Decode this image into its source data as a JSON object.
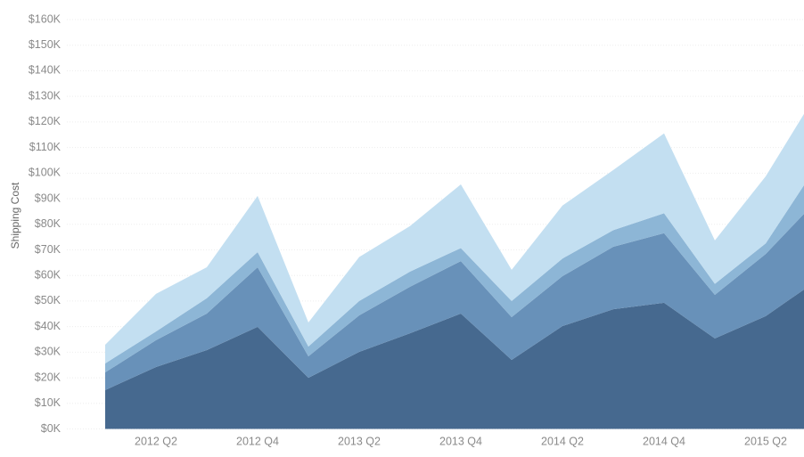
{
  "chart_data": {
    "type": "stacked_area",
    "y_label": "Shipping Cost",
    "categories": [
      null,
      "2012 Q2",
      null,
      "2012 Q4",
      null,
      "2013 Q2",
      null,
      "2013 Q4",
      null,
      "2014 Q2",
      null,
      "2014 Q4",
      null,
      "2015 Q2",
      null
    ],
    "series": [
      {
        "color": "#46698f",
        "values": [
          15.2,
          24.2,
          30.8,
          39.9,
          20,
          30.1,
          37.4,
          45.1,
          27,
          40.2,
          46.8,
          49.3,
          35.4,
          44.1,
          57.9
        ]
      },
      {
        "color": "#6891b9",
        "values": [
          6.9,
          10.5,
          14.3,
          23.3,
          8.4,
          14.3,
          18.2,
          20.5,
          16.7,
          19.5,
          24.4,
          27.2,
          17,
          24.3,
          31.3
        ]
      },
      {
        "color": "#8db6d6",
        "values": [
          3.5,
          3.4,
          6,
          5.9,
          3.8,
          5.6,
          5.9,
          5.1,
          6.3,
          6.9,
          6.5,
          7.8,
          4.3,
          4.1,
          13.5
        ]
      },
      {
        "color": "#c3dff1",
        "values": [
          7.3,
          14.7,
          12.1,
          22,
          9.4,
          17.2,
          17.8,
          24.9,
          12.2,
          20.7,
          23.5,
          31.2,
          17,
          26.2,
          28.4
        ]
      }
    ],
    "ylim": [
      0,
      160
    ],
    "yticks": [
      {
        "value": 0,
        "label": "$0K"
      },
      {
        "value": 10,
        "label": "$10K"
      },
      {
        "value": 20,
        "label": "$20K"
      },
      {
        "value": 30,
        "label": "$30K"
      },
      {
        "value": 40,
        "label": "$40K"
      },
      {
        "value": 50,
        "label": "$50K"
      },
      {
        "value": 60,
        "label": "$60K"
      },
      {
        "value": 70,
        "label": "$70K"
      },
      {
        "value": 80,
        "label": "$80K"
      },
      {
        "value": 90,
        "label": "$90K"
      },
      {
        "value": 100,
        "label": "$100K"
      },
      {
        "value": 110,
        "label": "$110K"
      },
      {
        "value": 120,
        "label": "$120K"
      },
      {
        "value": 130,
        "label": "$130K"
      },
      {
        "value": 140,
        "label": "$140K"
      },
      {
        "value": 150,
        "label": "$150K"
      },
      {
        "value": 160,
        "label": "$160K"
      }
    ],
    "grid": true
  }
}
